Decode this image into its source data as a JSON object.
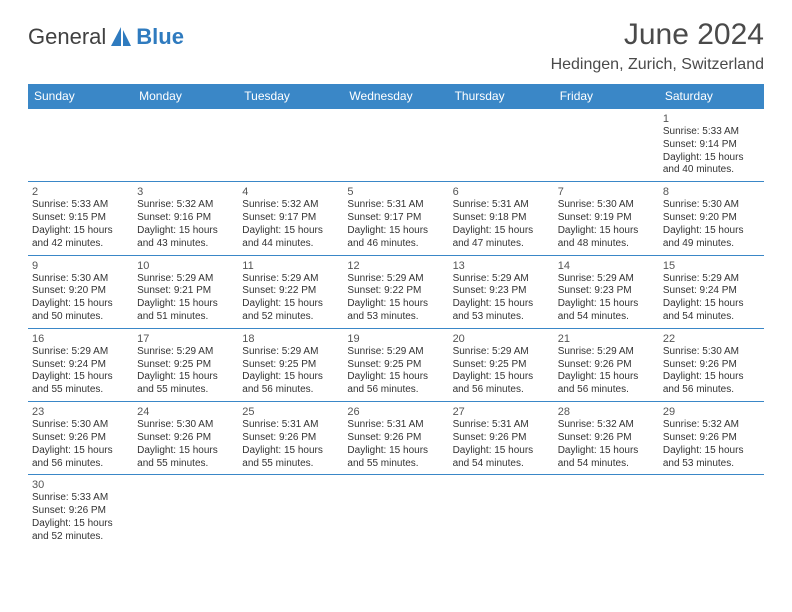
{
  "brand": {
    "general": "General",
    "blue": "Blue"
  },
  "title": "June 2024",
  "location": "Hedingen, Zurich, Switzerland",
  "style": {
    "header_bg": "#3a87c7",
    "header_fg": "#ffffff",
    "cell_border": "#3a87c7",
    "title_color": "#4a4a4a",
    "title_fontsize": 30,
    "location_fontsize": 16,
    "cell_fontsize": 10,
    "daynum_fontsize": 11,
    "page_bg": "#ffffff",
    "text_color": "#333333",
    "columns": 7,
    "rows": 6
  },
  "weekdays": [
    "Sunday",
    "Monday",
    "Tuesday",
    "Wednesday",
    "Thursday",
    "Friday",
    "Saturday"
  ],
  "labels": {
    "sunrise": "Sunrise:",
    "sunset": "Sunset:",
    "daylight": "Daylight:"
  },
  "first_weekday_index": 6,
  "days": [
    {
      "n": 1,
      "sunrise": "5:33 AM",
      "sunset": "9:14 PM",
      "daylight": "15 hours and 40 minutes."
    },
    {
      "n": 2,
      "sunrise": "5:33 AM",
      "sunset": "9:15 PM",
      "daylight": "15 hours and 42 minutes."
    },
    {
      "n": 3,
      "sunrise": "5:32 AM",
      "sunset": "9:16 PM",
      "daylight": "15 hours and 43 minutes."
    },
    {
      "n": 4,
      "sunrise": "5:32 AM",
      "sunset": "9:17 PM",
      "daylight": "15 hours and 44 minutes."
    },
    {
      "n": 5,
      "sunrise": "5:31 AM",
      "sunset": "9:17 PM",
      "daylight": "15 hours and 46 minutes."
    },
    {
      "n": 6,
      "sunrise": "5:31 AM",
      "sunset": "9:18 PM",
      "daylight": "15 hours and 47 minutes."
    },
    {
      "n": 7,
      "sunrise": "5:30 AM",
      "sunset": "9:19 PM",
      "daylight": "15 hours and 48 minutes."
    },
    {
      "n": 8,
      "sunrise": "5:30 AM",
      "sunset": "9:20 PM",
      "daylight": "15 hours and 49 minutes."
    },
    {
      "n": 9,
      "sunrise": "5:30 AM",
      "sunset": "9:20 PM",
      "daylight": "15 hours and 50 minutes."
    },
    {
      "n": 10,
      "sunrise": "5:29 AM",
      "sunset": "9:21 PM",
      "daylight": "15 hours and 51 minutes."
    },
    {
      "n": 11,
      "sunrise": "5:29 AM",
      "sunset": "9:22 PM",
      "daylight": "15 hours and 52 minutes."
    },
    {
      "n": 12,
      "sunrise": "5:29 AM",
      "sunset": "9:22 PM",
      "daylight": "15 hours and 53 minutes."
    },
    {
      "n": 13,
      "sunrise": "5:29 AM",
      "sunset": "9:23 PM",
      "daylight": "15 hours and 53 minutes."
    },
    {
      "n": 14,
      "sunrise": "5:29 AM",
      "sunset": "9:23 PM",
      "daylight": "15 hours and 54 minutes."
    },
    {
      "n": 15,
      "sunrise": "5:29 AM",
      "sunset": "9:24 PM",
      "daylight": "15 hours and 54 minutes."
    },
    {
      "n": 16,
      "sunrise": "5:29 AM",
      "sunset": "9:24 PM",
      "daylight": "15 hours and 55 minutes."
    },
    {
      "n": 17,
      "sunrise": "5:29 AM",
      "sunset": "9:25 PM",
      "daylight": "15 hours and 55 minutes."
    },
    {
      "n": 18,
      "sunrise": "5:29 AM",
      "sunset": "9:25 PM",
      "daylight": "15 hours and 56 minutes."
    },
    {
      "n": 19,
      "sunrise": "5:29 AM",
      "sunset": "9:25 PM",
      "daylight": "15 hours and 56 minutes."
    },
    {
      "n": 20,
      "sunrise": "5:29 AM",
      "sunset": "9:25 PM",
      "daylight": "15 hours and 56 minutes."
    },
    {
      "n": 21,
      "sunrise": "5:29 AM",
      "sunset": "9:26 PM",
      "daylight": "15 hours and 56 minutes."
    },
    {
      "n": 22,
      "sunrise": "5:30 AM",
      "sunset": "9:26 PM",
      "daylight": "15 hours and 56 minutes."
    },
    {
      "n": 23,
      "sunrise": "5:30 AM",
      "sunset": "9:26 PM",
      "daylight": "15 hours and 56 minutes."
    },
    {
      "n": 24,
      "sunrise": "5:30 AM",
      "sunset": "9:26 PM",
      "daylight": "15 hours and 55 minutes."
    },
    {
      "n": 25,
      "sunrise": "5:31 AM",
      "sunset": "9:26 PM",
      "daylight": "15 hours and 55 minutes."
    },
    {
      "n": 26,
      "sunrise": "5:31 AM",
      "sunset": "9:26 PM",
      "daylight": "15 hours and 55 minutes."
    },
    {
      "n": 27,
      "sunrise": "5:31 AM",
      "sunset": "9:26 PM",
      "daylight": "15 hours and 54 minutes."
    },
    {
      "n": 28,
      "sunrise": "5:32 AM",
      "sunset": "9:26 PM",
      "daylight": "15 hours and 54 minutes."
    },
    {
      "n": 29,
      "sunrise": "5:32 AM",
      "sunset": "9:26 PM",
      "daylight": "15 hours and 53 minutes."
    },
    {
      "n": 30,
      "sunrise": "5:33 AM",
      "sunset": "9:26 PM",
      "daylight": "15 hours and 52 minutes."
    }
  ]
}
